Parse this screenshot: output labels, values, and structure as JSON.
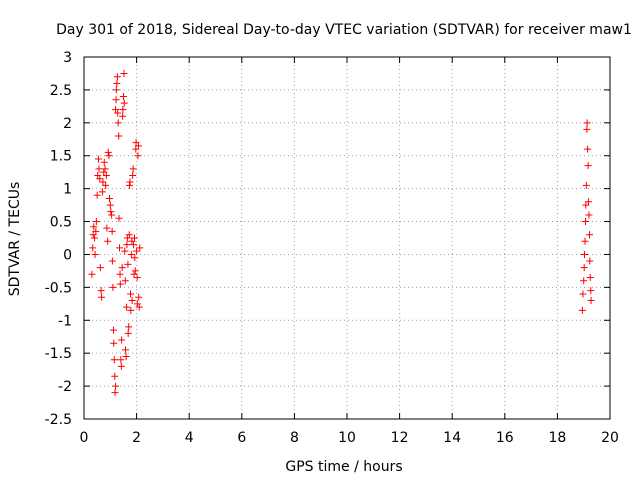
{
  "chart_data": {
    "type": "scatter",
    "title": "Day 301 of 2018, Sidereal Day-to-day VTEC variation (SDTVAR) for receiver maw1",
    "xlabel": "GPS time / hours",
    "ylabel": "SDTVAR / TECUs",
    "xlim": [
      0,
      20
    ],
    "ylim": [
      -2.5,
      3
    ],
    "xticks": [
      0,
      2,
      4,
      6,
      8,
      10,
      12,
      14,
      16,
      18,
      20
    ],
    "yticks": [
      -2.5,
      -2,
      -1.5,
      -1,
      -0.5,
      0,
      0.5,
      1,
      1.5,
      2,
      2.5,
      3
    ],
    "xtick_labels": [
      "0",
      "2",
      "4",
      "6",
      "8",
      "10",
      "12",
      "14",
      "16",
      "18",
      "20"
    ],
    "ytick_labels": [
      "-2.5",
      "-2",
      "-1.5",
      "-1",
      "-0.5",
      "0",
      "0.5",
      "1",
      "1.5",
      "2",
      "2.5",
      "3"
    ],
    "grid": true,
    "marker": "+",
    "series": [
      {
        "name": "SDTVAR",
        "color": "#ff0000",
        "points": [
          [
            0.3,
            -0.3
          ],
          [
            0.33,
            0.1
          ],
          [
            0.35,
            0.3
          ],
          [
            0.37,
            0.42
          ],
          [
            0.4,
            0.25
          ],
          [
            0.42,
            0.0
          ],
          [
            0.45,
            0.35
          ],
          [
            0.47,
            0.5
          ],
          [
            0.5,
            0.9
          ],
          [
            0.52,
            1.2
          ],
          [
            0.55,
            1.45
          ],
          [
            0.57,
            1.3
          ],
          [
            0.6,
            1.15
          ],
          [
            0.62,
            -0.2
          ],
          [
            0.65,
            -0.55
          ],
          [
            0.67,
            -0.65
          ],
          [
            0.7,
            0.95
          ],
          [
            0.72,
            1.1
          ],
          [
            0.75,
            1.25
          ],
          [
            0.77,
            1.4
          ],
          [
            0.8,
            1.3
          ],
          [
            0.82,
            1.05
          ],
          [
            0.85,
            1.2
          ],
          [
            0.87,
            0.4
          ],
          [
            0.9,
            0.2
          ],
          [
            0.92,
            1.55
          ],
          [
            0.95,
            1.5
          ],
          [
            0.97,
            0.85
          ],
          [
            1.0,
            0.75
          ],
          [
            1.02,
            0.65
          ],
          [
            1.05,
            0.6
          ],
          [
            1.07,
            0.35
          ],
          [
            1.08,
            -0.1
          ],
          [
            1.1,
            -0.5
          ],
          [
            1.12,
            -1.15
          ],
          [
            1.13,
            -1.35
          ],
          [
            1.15,
            -1.6
          ],
          [
            1.17,
            -1.85
          ],
          [
            1.18,
            -2.1
          ],
          [
            1.2,
            -2.0
          ],
          [
            1.2,
            2.2
          ],
          [
            1.22,
            2.35
          ],
          [
            1.23,
            2.5
          ],
          [
            1.25,
            2.6
          ],
          [
            1.27,
            2.7
          ],
          [
            1.28,
            2.15
          ],
          [
            1.3,
            2.0
          ],
          [
            1.32,
            1.8
          ],
          [
            1.33,
            0.55
          ],
          [
            1.35,
            0.1
          ],
          [
            1.37,
            -0.3
          ],
          [
            1.38,
            -0.45
          ],
          [
            1.4,
            -1.6
          ],
          [
            1.42,
            -1.7
          ],
          [
            1.43,
            -1.3
          ],
          [
            1.45,
            -0.2
          ],
          [
            1.47,
            2.1
          ],
          [
            1.48,
            2.2
          ],
          [
            1.5,
            2.4
          ],
          [
            1.52,
            2.75
          ],
          [
            1.53,
            2.3
          ],
          [
            1.55,
            0.05
          ],
          [
            1.57,
            -0.4
          ],
          [
            1.58,
            -1.45
          ],
          [
            1.6,
            -1.55
          ],
          [
            1.62,
            -0.8
          ],
          [
            1.63,
            0.15
          ],
          [
            1.65,
            0.25
          ],
          [
            1.67,
            -0.15
          ],
          [
            1.68,
            -1.2
          ],
          [
            1.7,
            -1.1
          ],
          [
            1.72,
            0.3
          ],
          [
            1.73,
            1.05
          ],
          [
            1.75,
            1.1
          ],
          [
            1.77,
            -0.6
          ],
          [
            1.78,
            -0.85
          ],
          [
            1.8,
            0.0
          ],
          [
            1.82,
            0.2
          ],
          [
            1.83,
            -0.7
          ],
          [
            1.85,
            1.2
          ],
          [
            1.87,
            1.3
          ],
          [
            1.88,
            0.15
          ],
          [
            1.9,
            -0.3
          ],
          [
            1.92,
            0.25
          ],
          [
            1.93,
            -0.05
          ],
          [
            1.95,
            -0.25
          ],
          [
            1.97,
            1.6
          ],
          [
            1.98,
            1.7
          ],
          [
            2.0,
            0.05
          ],
          [
            2.02,
            -0.35
          ],
          [
            2.03,
            -0.75
          ],
          [
            2.05,
            1.5
          ],
          [
            2.07,
            1.65
          ],
          [
            2.08,
            -0.65
          ],
          [
            2.1,
            -0.8
          ],
          [
            2.12,
            0.1
          ],
          [
            18.95,
            -0.85
          ],
          [
            18.97,
            -0.6
          ],
          [
            19.0,
            -0.4
          ],
          [
            19.02,
            -0.2
          ],
          [
            19.03,
            0.0
          ],
          [
            19.05,
            0.2
          ],
          [
            19.07,
            0.5
          ],
          [
            19.08,
            0.75
          ],
          [
            19.1,
            1.05
          ],
          [
            19.12,
            1.9
          ],
          [
            19.13,
            2.0
          ],
          [
            19.15,
            1.6
          ],
          [
            19.17,
            1.35
          ],
          [
            19.18,
            0.8
          ],
          [
            19.2,
            0.6
          ],
          [
            19.22,
            0.3
          ],
          [
            19.23,
            -0.1
          ],
          [
            19.25,
            -0.35
          ],
          [
            19.27,
            -0.55
          ],
          [
            19.28,
            -0.7
          ]
        ]
      }
    ]
  }
}
